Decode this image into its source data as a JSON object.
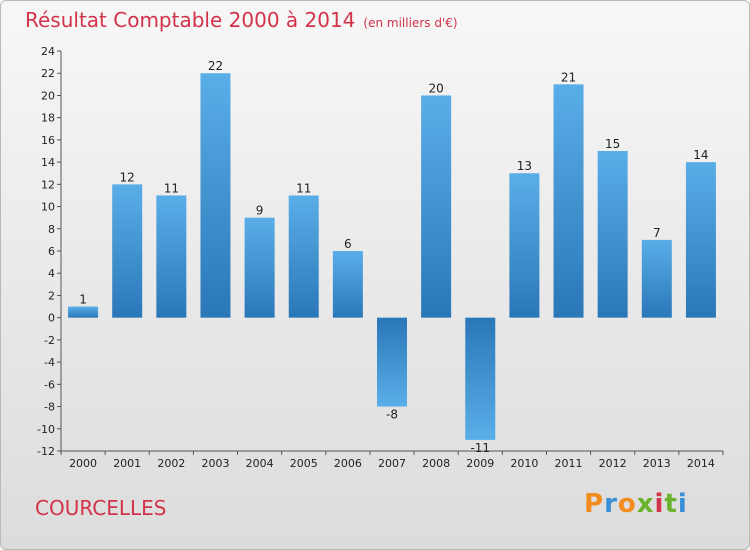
{
  "title": "Résultat Comptable 2000 à 2014",
  "subtitle": "(en milliers d'€)",
  "city": "COURCELLES",
  "logo": {
    "letters": [
      "P",
      "r",
      "o",
      "x",
      "i",
      "t",
      "i"
    ],
    "colors": [
      "#f28c1e",
      "#3a8fd6",
      "#f28c1e",
      "#6ab42d",
      "#d2334a",
      "#6ab42d",
      "#3a8fd6"
    ]
  },
  "colors": {
    "title": "#d2334a",
    "bar_light": "#5aaee8",
    "bar_dark": "#2a77b8"
  },
  "chart_data": {
    "type": "bar",
    "categories": [
      "2000",
      "2001",
      "2002",
      "2003",
      "2004",
      "2005",
      "2006",
      "2007",
      "2008",
      "2009",
      "2010",
      "2011",
      "2012",
      "2013",
      "2014"
    ],
    "values": [
      1,
      12,
      11,
      22,
      9,
      11,
      6,
      -8,
      20,
      -11,
      13,
      21,
      15,
      7,
      14
    ],
    "ylim": [
      -12,
      24
    ],
    "yticks": [
      24,
      22,
      20,
      18,
      16,
      14,
      12,
      10,
      8,
      6,
      4,
      2,
      0,
      -2,
      -4,
      -6,
      -8,
      -10,
      -12
    ],
    "grid": false,
    "title": "Résultat Comptable 2000 à 2014",
    "xlabel": "",
    "ylabel": ""
  }
}
